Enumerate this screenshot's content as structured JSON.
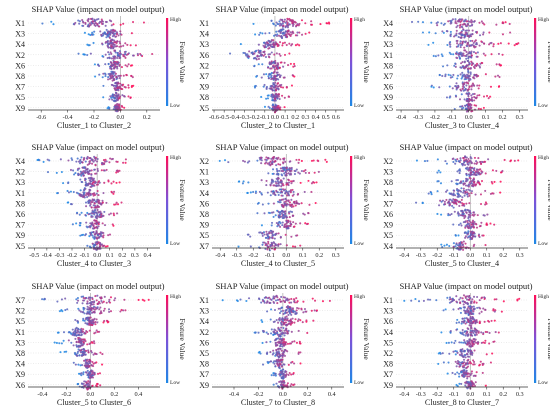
{
  "panel_title": "SHAP Value (impact on model output)",
  "colorbar": {
    "high": "High",
    "low": "Low",
    "label": "Feature Value",
    "color_low": "#1e88e5",
    "color_high": "#ff0d57"
  },
  "chart_data": [
    {
      "type": "beeswarm",
      "xlabel": "Cluster_1 to Cluster_2",
      "features": [
        "X1",
        "X3",
        "X4",
        "X2",
        "X6",
        "X8",
        "X7",
        "X5",
        "X9"
      ],
      "xlim": [
        -0.7,
        0.3
      ],
      "xticks": [
        -0.6,
        -0.4,
        -0.2,
        0.0,
        0.2
      ],
      "spread": [
        [
          -0.62,
          0.2
        ],
        [
          -0.3,
          0.14
        ],
        [
          -0.25,
          0.12
        ],
        [
          -0.32,
          0.25
        ],
        [
          -0.2,
          0.1
        ],
        [
          -0.22,
          0.1
        ],
        [
          -0.15,
          0.1
        ],
        [
          -0.15,
          0.08
        ],
        [
          -0.1,
          0.05
        ]
      ]
    },
    {
      "type": "beeswarm",
      "xlabel": "Cluster_2 to Cluster_1",
      "features": [
        "X1",
        "X4",
        "X3",
        "X6",
        "X2",
        "X7",
        "X9",
        "X8",
        "X5"
      ],
      "xlim": [
        -0.62,
        0.68
      ],
      "xticks": [
        -0.6,
        -0.5,
        -0.4,
        -0.3,
        -0.2,
        -0.1,
        0.0,
        0.1,
        0.2,
        0.3,
        0.4,
        0.5,
        0.6
      ],
      "spread": [
        [
          -0.3,
          0.55
        ],
        [
          -0.2,
          0.35
        ],
        [
          -0.35,
          0.25
        ],
        [
          -0.55,
          0.2
        ],
        [
          -0.25,
          0.25
        ],
        [
          -0.2,
          0.2
        ],
        [
          -0.2,
          0.2
        ],
        [
          -0.15,
          0.15
        ],
        [
          -0.1,
          0.1
        ]
      ]
    },
    {
      "type": "beeswarm",
      "xlabel": "Cluster_3 to Cluster_4",
      "features": [
        "X4",
        "X2",
        "X3",
        "X1",
        "X8",
        "X7",
        "X6",
        "X9",
        "X5"
      ],
      "xlim": [
        -0.43,
        0.35
      ],
      "xticks": [
        -0.4,
        -0.3,
        -0.2,
        -0.1,
        0.0,
        0.1,
        0.2,
        0.3
      ],
      "spread": [
        [
          -0.4,
          0.3
        ],
        [
          -0.3,
          0.25
        ],
        [
          -0.3,
          0.3
        ],
        [
          -0.25,
          0.2
        ],
        [
          -0.2,
          0.2
        ],
        [
          -0.2,
          0.2
        ],
        [
          -0.25,
          0.2
        ],
        [
          -0.15,
          0.15
        ],
        [
          -0.1,
          0.1
        ]
      ]
    },
    {
      "type": "beeswarm",
      "xlabel": "Cluster_4 to Cluster_3",
      "features": [
        "X4",
        "X2",
        "X3",
        "X1",
        "X8",
        "X6",
        "X7",
        "X9",
        "X5"
      ],
      "xlim": [
        -0.55,
        0.5
      ],
      "xticks": [
        -0.5,
        -0.4,
        -0.3,
        -0.2,
        -0.1,
        0.0,
        0.1,
        0.2,
        0.3,
        0.4
      ],
      "spread": [
        [
          -0.5,
          0.42
        ],
        [
          -0.4,
          0.2
        ],
        [
          -0.3,
          0.2
        ],
        [
          -0.35,
          0.15
        ],
        [
          -0.25,
          0.2
        ],
        [
          -0.2,
          0.2
        ],
        [
          -0.2,
          0.15
        ],
        [
          -0.15,
          0.15
        ],
        [
          -0.1,
          0.1
        ]
      ]
    },
    {
      "type": "beeswarm",
      "xlabel": "Cluster_4 to Cluster_5",
      "features": [
        "X2",
        "X1",
        "X3",
        "X4",
        "X6",
        "X8",
        "X9",
        "X5",
        "X7"
      ],
      "xlim": [
        -0.45,
        0.35
      ],
      "xticks": [
        -0.4,
        -0.3,
        -0.2,
        -0.1,
        0.0,
        0.1,
        0.2,
        0.3
      ],
      "spread": [
        [
          -0.42,
          0.25
        ],
        [
          -0.2,
          0.2
        ],
        [
          -0.3,
          0.2
        ],
        [
          -0.25,
          0.2
        ],
        [
          -0.2,
          0.2
        ],
        [
          -0.2,
          0.15
        ],
        [
          -0.15,
          0.15
        ],
        [
          -0.3,
          0.1
        ],
        [
          -0.3,
          0.1
        ]
      ]
    },
    {
      "type": "beeswarm",
      "xlabel": "Cluster_5 to Cluster_4",
      "features": [
        "X2",
        "X3",
        "X8",
        "X1",
        "X7",
        "X6",
        "X9",
        "X5",
        "X4"
      ],
      "xlim": [
        -0.45,
        0.35
      ],
      "xticks": [
        -0.4,
        -0.3,
        -0.2,
        -0.1,
        0.0,
        0.1,
        0.2,
        0.3
      ],
      "spread": [
        [
          -0.35,
          0.3
        ],
        [
          -0.2,
          0.2
        ],
        [
          -0.2,
          0.2
        ],
        [
          -0.3,
          0.2
        ],
        [
          -0.35,
          0.15
        ],
        [
          -0.2,
          0.15
        ],
        [
          -0.15,
          0.15
        ],
        [
          -0.1,
          0.1
        ],
        [
          -0.2,
          0.1
        ]
      ]
    },
    {
      "type": "beeswarm",
      "xlabel": "Cluster_5 to Cluster_6",
      "features": [
        "X7",
        "X2",
        "X5",
        "X1",
        "X3",
        "X8",
        "X4",
        "X9",
        "X6"
      ],
      "xlim": [
        -0.52,
        0.58
      ],
      "xticks": [
        -0.4,
        -0.2,
        0.0,
        0.2,
        0.4
      ],
      "spread": [
        [
          -0.45,
          0.5
        ],
        [
          -0.3,
          0.3
        ],
        [
          -0.15,
          0.15
        ],
        [
          -0.3,
          0.1
        ],
        [
          -0.3,
          0.1
        ],
        [
          -0.25,
          0.1
        ],
        [
          -0.15,
          0.1
        ],
        [
          -0.1,
          0.1
        ],
        [
          -0.15,
          0.1
        ]
      ]
    },
    {
      "type": "beeswarm",
      "xlabel": "Cluster_7 to Cluster_8",
      "features": [
        "X1",
        "X3",
        "X4",
        "X2",
        "X6",
        "X5",
        "X8",
        "X7",
        "X9"
      ],
      "xlim": [
        -0.58,
        0.5
      ],
      "xticks": [
        -0.4,
        -0.2,
        0.0,
        0.2,
        0.4
      ],
      "spread": [
        [
          -0.5,
          0.4
        ],
        [
          -0.2,
          0.3
        ],
        [
          -0.2,
          0.25
        ],
        [
          -0.25,
          0.2
        ],
        [
          -0.2,
          0.15
        ],
        [
          -0.2,
          0.15
        ],
        [
          -0.2,
          0.15
        ],
        [
          -0.1,
          0.1
        ],
        [
          -0.1,
          0.1
        ]
      ]
    },
    {
      "type": "beeswarm",
      "xlabel": "Cluster_8 to Cluster_7",
      "features": [
        "X1",
        "X3",
        "X6",
        "X4",
        "X5",
        "X2",
        "X8",
        "X7",
        "X9"
      ],
      "xlim": [
        -0.45,
        0.35
      ],
      "xticks": [
        -0.4,
        -0.3,
        -0.2,
        -0.1,
        0.0,
        0.1,
        0.2,
        0.3
      ],
      "spread": [
        [
          -0.4,
          0.33
        ],
        [
          -0.2,
          0.2
        ],
        [
          -0.15,
          0.15
        ],
        [
          -0.2,
          0.2
        ],
        [
          -0.15,
          0.15
        ],
        [
          -0.2,
          0.15
        ],
        [
          -0.2,
          0.15
        ],
        [
          -0.15,
          0.1
        ],
        [
          -0.1,
          0.1
        ]
      ]
    }
  ]
}
